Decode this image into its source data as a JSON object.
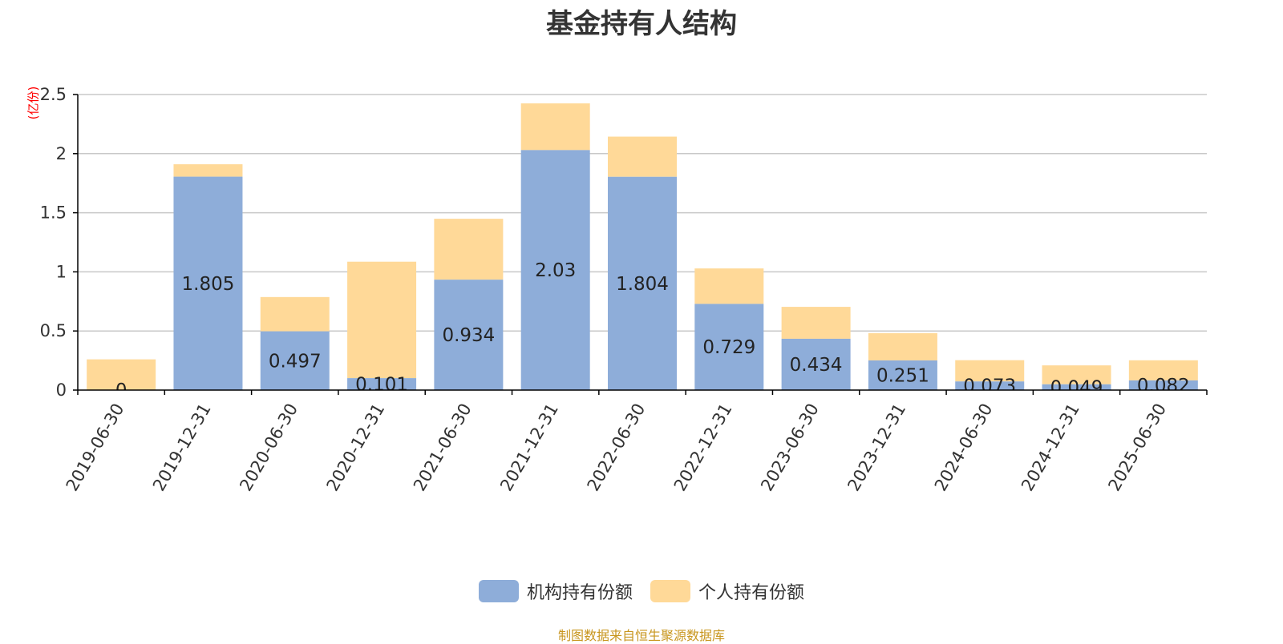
{
  "title": "基金持有人结构",
  "unit_label": "(亿份)",
  "source_note": "制图数据来自恒生聚源数据库",
  "colors": {
    "institutional": "#8eadd9",
    "individual": "#ffd998",
    "source_text": "#c8961e",
    "grid": "#c8c8c8",
    "axis": "#000000",
    "unit": "#ff0000"
  },
  "chart_data": {
    "type": "bar",
    "stacked": true,
    "categories": [
      "2019-06-30",
      "2019-12-31",
      "2020-06-30",
      "2020-12-31",
      "2021-06-30",
      "2021-12-31",
      "2022-06-30",
      "2022-12-31",
      "2023-06-30",
      "2023-12-31",
      "2024-06-30",
      "2024-12-31",
      "2025-06-30"
    ],
    "series": [
      {
        "name": "机构持有份额",
        "color": "#8eadd9",
        "values": [
          0,
          1.805,
          0.497,
          0.101,
          0.934,
          2.03,
          1.804,
          0.729,
          0.434,
          0.251,
          0.073,
          0.049,
          0.082
        ],
        "labels": [
          "0",
          "1.805",
          "0.497",
          "0.101",
          "0.934",
          "2.03",
          "1.804",
          "0.729",
          "0.434",
          "0.251",
          "0.073",
          "0.049",
          "0.082"
        ]
      },
      {
        "name": "个人持有份额",
        "color": "#ffd998",
        "values": [
          0.26,
          0.105,
          0.29,
          0.985,
          0.515,
          0.395,
          0.34,
          0.3,
          0.27,
          0.23,
          0.18,
          0.16,
          0.17
        ]
      }
    ],
    "y_ticks": [
      "0",
      "0.5",
      "1",
      "1.5",
      "2",
      "2.5"
    ],
    "ylim": [
      0,
      2.5
    ],
    "grid": true,
    "legend_position": "bottom-center"
  }
}
